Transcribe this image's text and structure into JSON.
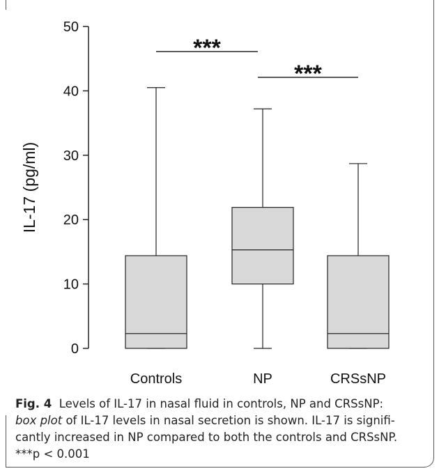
{
  "chart_data": {
    "type": "box",
    "ylabel": "IL-17 (pg/ml)",
    "ylim": [
      0,
      50
    ],
    "yticks": [
      0,
      10,
      20,
      30,
      40,
      50
    ],
    "categories": [
      "Controls",
      "NP",
      "CRSsNP"
    ],
    "boxes": [
      {
        "category": "Controls",
        "min": 0,
        "q1": 0,
        "median": 2.3,
        "q3": 14.4,
        "max": 40.5
      },
      {
        "category": "NP",
        "min": 0,
        "q1": 10.0,
        "median": 15.3,
        "q3": 21.9,
        "max": 37.2
      },
      {
        "category": "CRSsNP",
        "min": 0,
        "q1": 0,
        "median": 2.3,
        "q3": 14.4,
        "max": 28.7
      }
    ],
    "annotations": [
      {
        "text": "***",
        "from": "Controls",
        "to": "NP"
      },
      {
        "text": "***",
        "from": "NP",
        "to": "CRSsNP"
      }
    ],
    "colors": {
      "box_fill": "#d9d9d9",
      "line": "#222222"
    }
  },
  "caption": {
    "fig_label": "Fig. 4",
    "line1_rest": "Levels of IL-17 in nasal fluid in controls, NP and CRSsNP:",
    "line2_italic": "box plot",
    "line2_rest": " of IL-17 levels in nasal secretion is shown. IL-17 is signifi-",
    "line3": "cantly increased in NP compared to both the controls and CRSsNP.",
    "line4": "***p < 0.001"
  }
}
